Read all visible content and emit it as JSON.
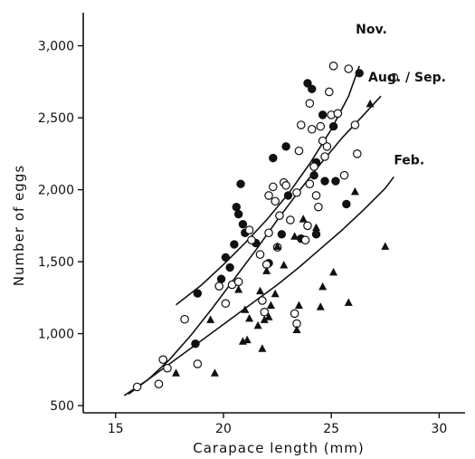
{
  "chart_data": {
    "type": "scatter",
    "title": "",
    "xlabel": "Carapace  length (mm)",
    "ylabel": "Number  of  eggs",
    "xlim": [
      13.5,
      31.2
    ],
    "ylim": [
      450,
      3230
    ],
    "xticks": [
      15,
      20,
      25,
      30
    ],
    "xtick_labels": [
      "15",
      "20",
      "25",
      "30"
    ],
    "yticks": [
      500,
      1000,
      1500,
      2000,
      2500,
      3000
    ],
    "ytick_labels": [
      "500",
      "1,000",
      "1,500",
      "2,000",
      "2,500",
      "3,000"
    ],
    "grid": false,
    "series": [
      {
        "name": "Nov.",
        "marker": "filled-circle",
        "points": [
          [
            18.8,
            1280
          ],
          [
            18.7,
            930
          ],
          [
            19.9,
            1380
          ],
          [
            20.1,
            1530
          ],
          [
            20.3,
            1460
          ],
          [
            20.5,
            1620
          ],
          [
            20.6,
            1880
          ],
          [
            20.7,
            1830
          ],
          [
            20.8,
            2040
          ],
          [
            20.9,
            1760
          ],
          [
            21.0,
            1700
          ],
          [
            21.5,
            1630
          ],
          [
            22.1,
            1490
          ],
          [
            22.3,
            2220
          ],
          [
            22.7,
            1690
          ],
          [
            22.9,
            2300
          ],
          [
            23.0,
            1960
          ],
          [
            23.6,
            1660
          ],
          [
            23.9,
            2740
          ],
          [
            24.1,
            2700
          ],
          [
            24.2,
            2100
          ],
          [
            24.3,
            2190
          ],
          [
            24.3,
            1690
          ],
          [
            24.6,
            2520
          ],
          [
            24.7,
            2060
          ],
          [
            25.1,
            2440
          ],
          [
            25.2,
            2060
          ],
          [
            25.7,
            1900
          ],
          [
            26.3,
            2810
          ]
        ]
      },
      {
        "name": "Aug./Sep.",
        "marker": "open-circle",
        "points": [
          [
            16.0,
            630
          ],
          [
            17.0,
            650
          ],
          [
            17.2,
            820
          ],
          [
            17.4,
            760
          ],
          [
            18.2,
            1100
          ],
          [
            18.8,
            790
          ],
          [
            19.8,
            1330
          ],
          [
            20.1,
            1210
          ],
          [
            20.4,
            1340
          ],
          [
            20.7,
            1360
          ],
          [
            21.2,
            1720
          ],
          [
            21.3,
            1650
          ],
          [
            21.7,
            1550
          ],
          [
            21.8,
            1230
          ],
          [
            21.9,
            1150
          ],
          [
            22.0,
            1480
          ],
          [
            22.1,
            1700
          ],
          [
            22.1,
            1960
          ],
          [
            22.3,
            2020
          ],
          [
            22.4,
            1920
          ],
          [
            22.5,
            1600
          ],
          [
            22.6,
            1820
          ],
          [
            22.8,
            2050
          ],
          [
            22.9,
            2030
          ],
          [
            23.1,
            1790
          ],
          [
            23.4,
            1980
          ],
          [
            23.5,
            2270
          ],
          [
            23.6,
            2450
          ],
          [
            23.8,
            1650
          ],
          [
            23.9,
            1750
          ],
          [
            24.0,
            2040
          ],
          [
            24.1,
            2420
          ],
          [
            24.2,
            2160
          ],
          [
            24.3,
            1960
          ],
          [
            24.4,
            1880
          ],
          [
            24.5,
            2440
          ],
          [
            24.6,
            2340
          ],
          [
            24.7,
            2230
          ],
          [
            24.8,
            2300
          ],
          [
            24.9,
            2680
          ],
          [
            25.0,
            2520
          ],
          [
            25.1,
            2860
          ],
          [
            25.3,
            2530
          ],
          [
            25.6,
            2100
          ],
          [
            25.8,
            2840
          ],
          [
            26.1,
            2450
          ],
          [
            26.2,
            2250
          ],
          [
            23.3,
            1140
          ],
          [
            23.4,
            1070
          ],
          [
            24.0,
            2600
          ],
          [
            27.9,
            2780
          ]
        ]
      },
      {
        "name": "Feb.",
        "marker": "filled-triangle",
        "points": [
          [
            17.8,
            730
          ],
          [
            19.4,
            1100
          ],
          [
            19.6,
            730
          ],
          [
            20.7,
            1310
          ],
          [
            20.9,
            950
          ],
          [
            21.0,
            1170
          ],
          [
            21.1,
            960
          ],
          [
            21.2,
            1110
          ],
          [
            21.6,
            1060
          ],
          [
            21.7,
            1300
          ],
          [
            21.8,
            900
          ],
          [
            21.9,
            1100
          ],
          [
            22.0,
            1440
          ],
          [
            22.1,
            1120
          ],
          [
            22.2,
            1200
          ],
          [
            22.4,
            1280
          ],
          [
            22.5,
            1610
          ],
          [
            22.8,
            1480
          ],
          [
            23.3,
            1680
          ],
          [
            23.4,
            1030
          ],
          [
            23.5,
            1200
          ],
          [
            23.7,
            1800
          ],
          [
            24.3,
            1740
          ],
          [
            24.5,
            1190
          ],
          [
            24.6,
            1330
          ],
          [
            25.1,
            1430
          ],
          [
            25.8,
            1220
          ],
          [
            26.1,
            1990
          ],
          [
            26.8,
            2600
          ],
          [
            27.5,
            1610
          ]
        ]
      }
    ],
    "curves": [
      {
        "label": "Nov.",
        "points": [
          [
            17.8,
            1200
          ],
          [
            19.0,
            1340
          ],
          [
            20.0,
            1480
          ],
          [
            21.0,
            1630
          ],
          [
            22.0,
            1790
          ],
          [
            23.0,
            1970
          ],
          [
            24.0,
            2180
          ],
          [
            25.0,
            2420
          ],
          [
            25.8,
            2650
          ],
          [
            26.3,
            2860
          ]
        ]
      },
      {
        "label": "Aug. / Sep.",
        "points": [
          [
            15.6,
            580
          ],
          [
            16.5,
            680
          ],
          [
            17.5,
            820
          ],
          [
            18.5,
            990
          ],
          [
            19.5,
            1180
          ],
          [
            20.5,
            1380
          ],
          [
            21.5,
            1580
          ],
          [
            22.5,
            1790
          ],
          [
            23.5,
            1990
          ],
          [
            24.5,
            2180
          ],
          [
            25.5,
            2360
          ],
          [
            26.5,
            2520
          ],
          [
            27.3,
            2650
          ]
        ]
      },
      {
        "label": "Feb.",
        "points": [
          [
            15.4,
            570
          ],
          [
            16.5,
            680
          ],
          [
            17.5,
            790
          ],
          [
            18.5,
            900
          ],
          [
            19.5,
            1010
          ],
          [
            20.5,
            1120
          ],
          [
            21.5,
            1230
          ],
          [
            22.5,
            1340
          ],
          [
            23.5,
            1460
          ],
          [
            24.5,
            1590
          ],
          [
            25.5,
            1720
          ],
          [
            26.5,
            1860
          ],
          [
            27.5,
            2010
          ],
          [
            27.9,
            2090
          ]
        ]
      }
    ]
  }
}
